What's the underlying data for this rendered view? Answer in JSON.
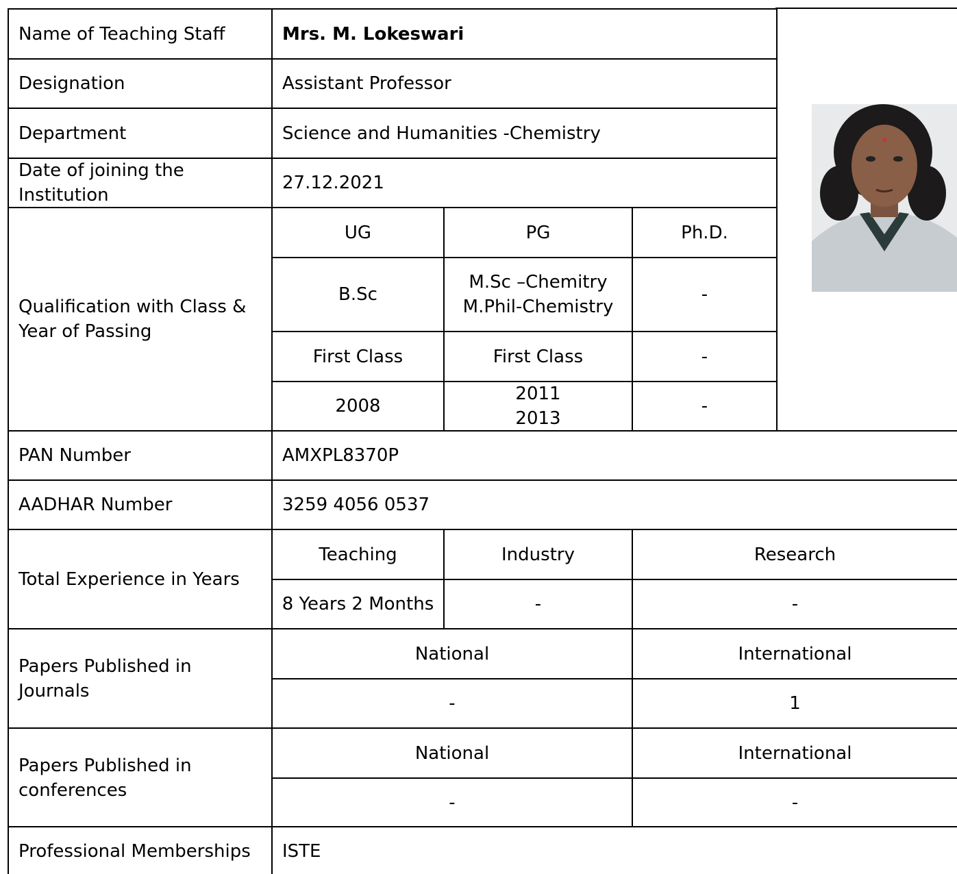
{
  "profile": {
    "name": {
      "label": "Name of Teaching Staff",
      "value": "Mrs. M. Lokeswari"
    },
    "designation": {
      "label": "Designation",
      "value": "Assistant Professor"
    },
    "department": {
      "label": "Department",
      "value": "Science and Humanities -Chemistry"
    },
    "joining": {
      "label": "Date of joining the Institution",
      "value": "27.12.2021"
    },
    "qualification": {
      "label": "Qualification with Class & Year of Passing",
      "headers": [
        "UG",
        "PG",
        "Ph.D."
      ],
      "degree": [
        [
          "B.Sc"
        ],
        [
          "M.Sc –Chemitry",
          "M.Phil-Chemistry"
        ],
        [
          "-"
        ]
      ],
      "class": [
        [
          "First Class"
        ],
        [
          "First Class"
        ],
        [
          "-"
        ]
      ],
      "year": [
        [
          "2008"
        ],
        [
          "2011",
          "2013"
        ],
        [
          "-"
        ]
      ]
    },
    "pan": {
      "label": "PAN Number",
      "value": "AMXPL8370P"
    },
    "aadhar": {
      "label": "AADHAR Number",
      "value": "3259 4056 0537"
    },
    "experience": {
      "label": "Total Experience in Years",
      "headers": [
        "Teaching",
        "Industry",
        "Research"
      ],
      "values": [
        "8 Years 2 Months",
        "-",
        "-"
      ]
    },
    "journals": {
      "label": "Papers Published in Journals",
      "headers": [
        "National",
        "International"
      ],
      "values": [
        "-",
        "1"
      ]
    },
    "conferences": {
      "label": "Papers Published in conferences",
      "headers": [
        "National",
        "International"
      ],
      "values": [
        "-",
        "-"
      ]
    },
    "memberships": {
      "label": "Professional Memberships",
      "value": "ISTE"
    }
  }
}
